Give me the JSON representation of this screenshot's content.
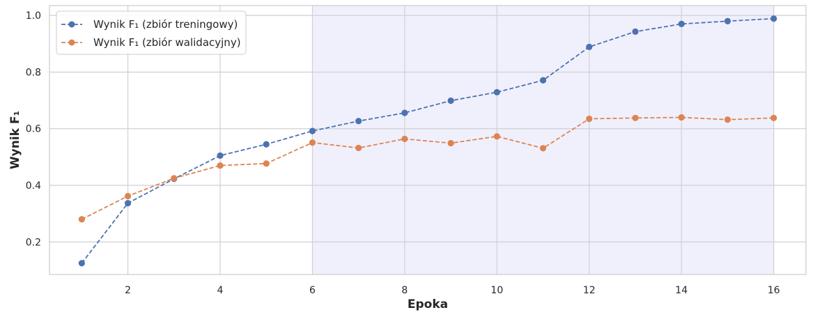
{
  "chart_data": {
    "type": "line",
    "xlabel": "Epoka",
    "ylabel": "Wynik F₁",
    "x": [
      1,
      2,
      3,
      4,
      5,
      6,
      7,
      8,
      9,
      10,
      11,
      12,
      13,
      14,
      15,
      16
    ],
    "xlim": [
      0.3,
      16.7
    ],
    "ylim": [
      0.085,
      1.035
    ],
    "xticks": [
      2,
      4,
      6,
      8,
      10,
      12,
      14,
      16
    ],
    "yticks": [
      0.2,
      0.4,
      0.6,
      0.8,
      1.0
    ],
    "xtick_labels": [
      "2",
      "4",
      "6",
      "8",
      "10",
      "12",
      "14",
      "16"
    ],
    "ytick_labels": [
      "0.2",
      "0.4",
      "0.6",
      "0.8",
      "1.0"
    ],
    "grid": true,
    "legend_position": "top-left",
    "shaded_region": {
      "x_start": 6,
      "x_end": 16,
      "color": "#e6e6fa"
    },
    "series": [
      {
        "name": "Wynik F₁ (zbiór treningowy)",
        "color": "#4c72b0",
        "values": [
          0.125,
          0.337,
          0.423,
          0.505,
          0.545,
          0.592,
          0.627,
          0.656,
          0.699,
          0.729,
          0.771,
          0.889,
          0.943,
          0.97,
          0.98,
          0.989
        ]
      },
      {
        "name": "Wynik F₁ (zbiór walidacyjny)",
        "color": "#dd8452",
        "values": [
          0.28,
          0.362,
          0.425,
          0.47,
          0.477,
          0.551,
          0.532,
          0.564,
          0.549,
          0.573,
          0.531,
          0.635,
          0.638,
          0.64,
          0.632,
          0.638
        ]
      }
    ]
  }
}
